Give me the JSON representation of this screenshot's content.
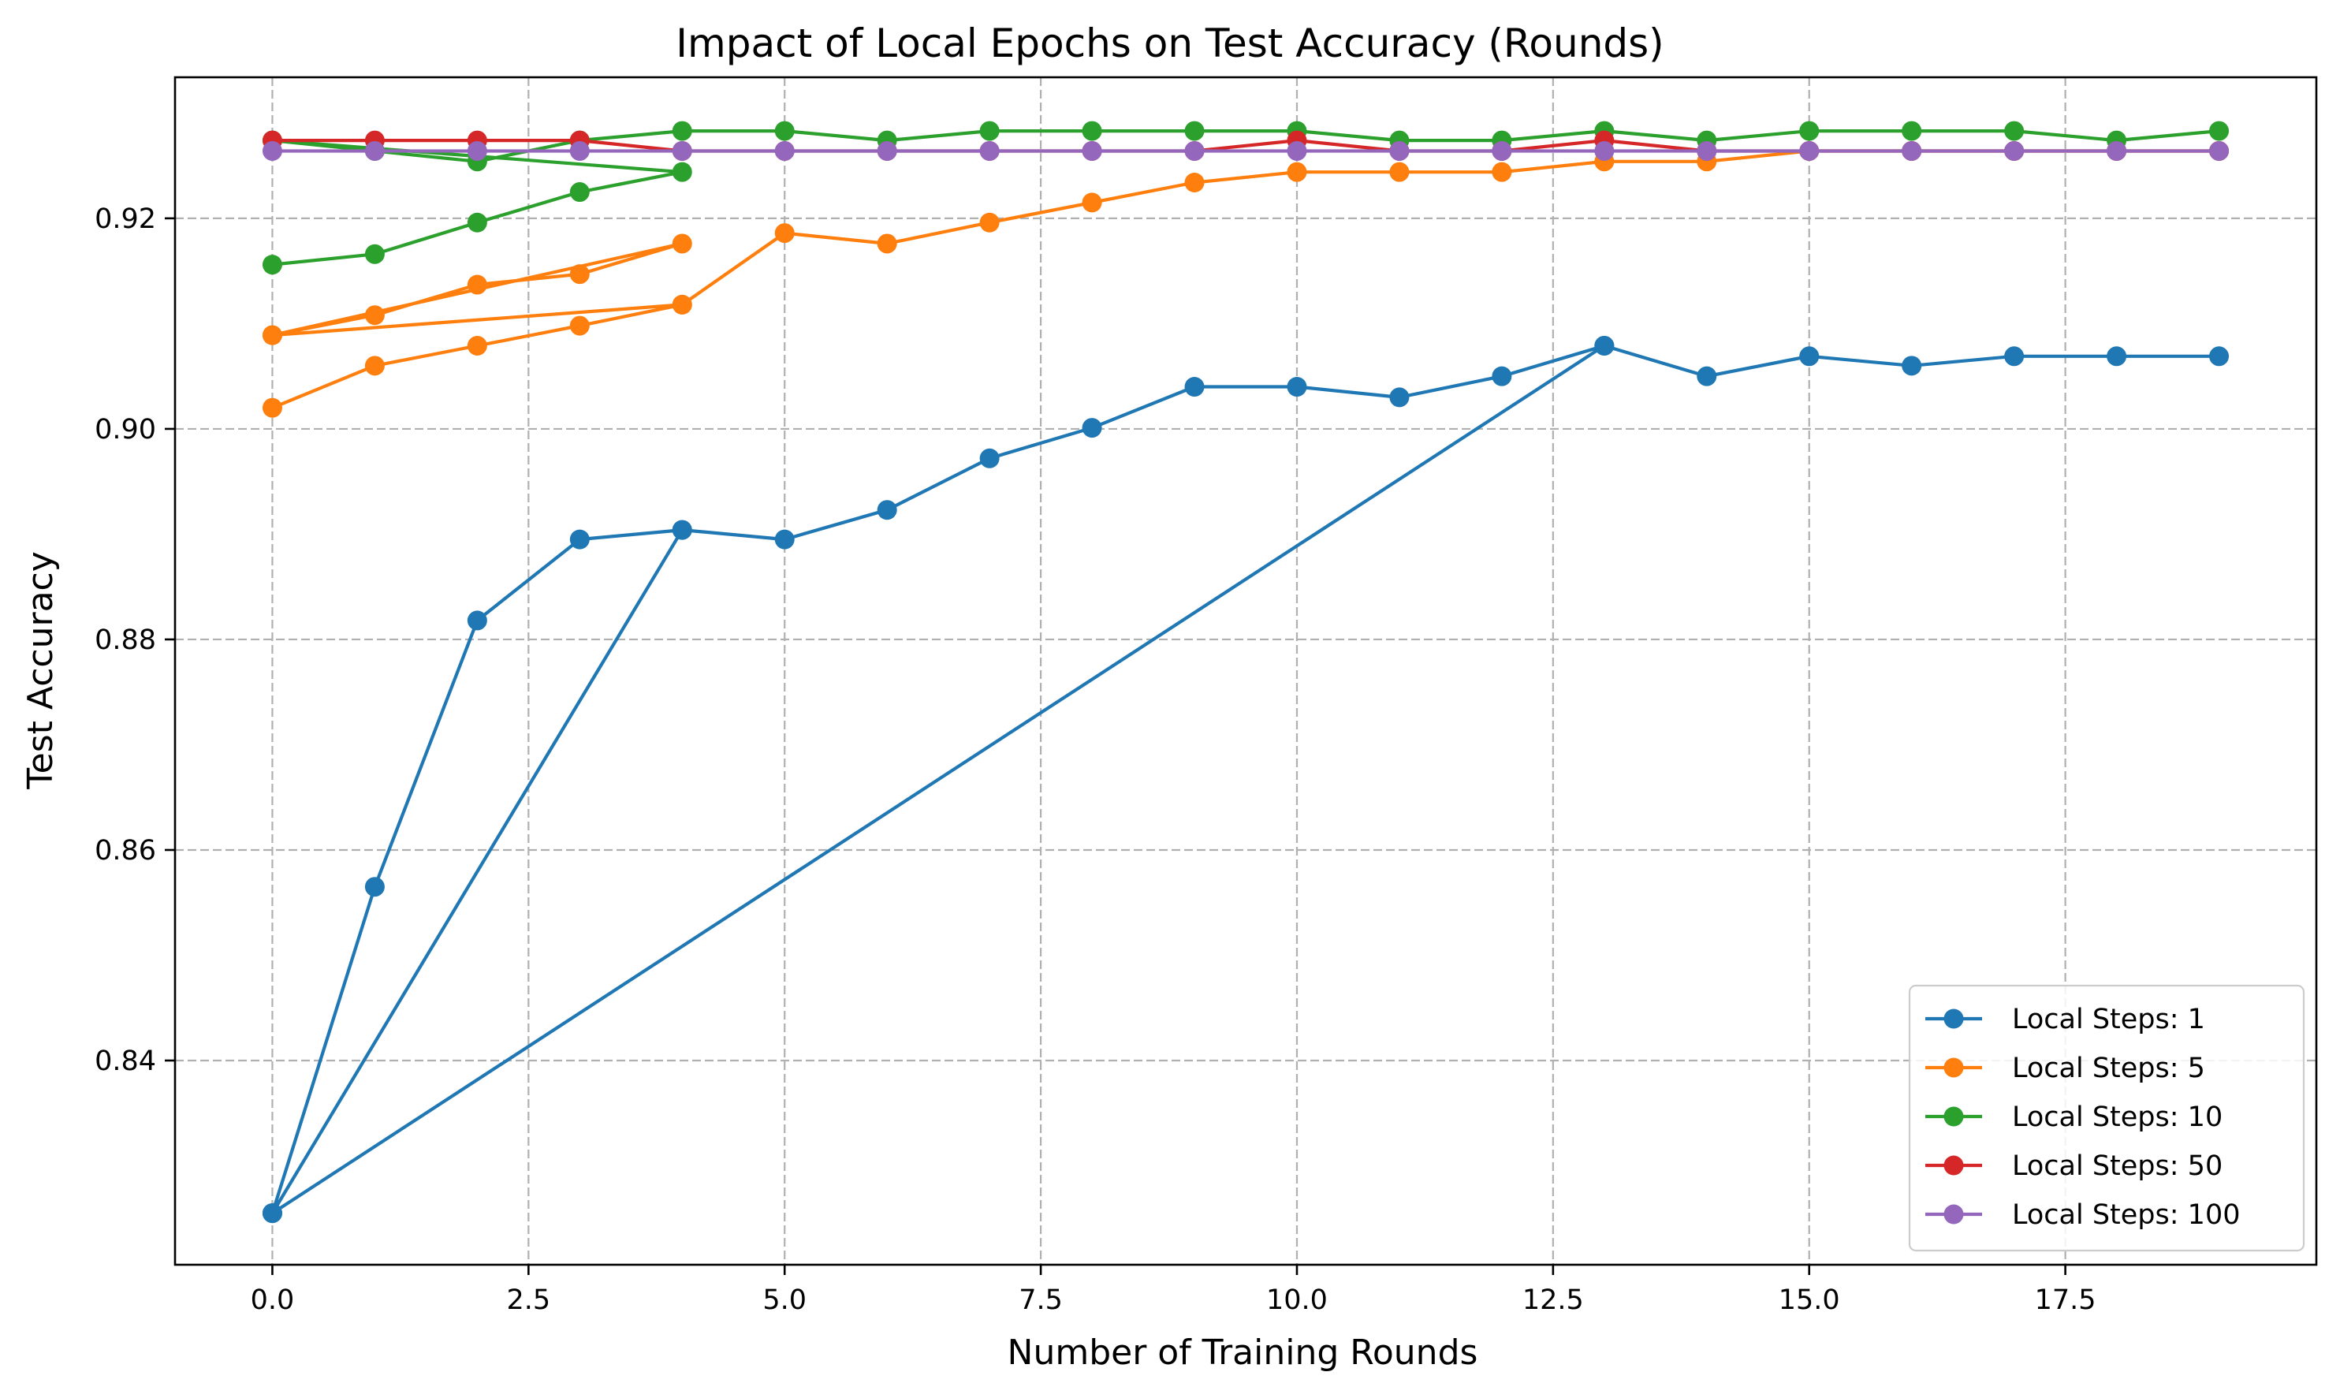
{
  "chart_data": {
    "type": "line",
    "title": "Impact of Local Epochs on Test Accuracy (Rounds)",
    "xlabel": "Number of Training Rounds",
    "ylabel": "Test Accuracy",
    "xlim": [
      -0.95,
      19.95
    ],
    "ylim": [
      0.8206,
      0.9334
    ],
    "xticks": [
      0.0,
      2.5,
      5.0,
      7.5,
      10.0,
      12.5,
      15.0,
      17.5
    ],
    "xtick_labels": [
      "0.0",
      "2.5",
      "5.0",
      "7.5",
      "10.0",
      "12.5",
      "15.0",
      "17.5"
    ],
    "yticks": [
      0.84,
      0.86,
      0.88,
      0.9,
      0.92
    ],
    "ytick_labels": [
      "0.84",
      "0.86",
      "0.88",
      "0.90",
      "0.92"
    ],
    "grid": true,
    "legend_position": "lower-right",
    "marker": "circle",
    "series": [
      {
        "name": "Local Steps: 1",
        "color": "#1f77b4",
        "x": [
          0,
          1,
          2,
          3,
          4,
          0,
          4,
          5,
          6,
          7,
          8,
          9,
          10,
          11,
          12,
          13,
          0,
          13,
          14,
          15,
          16,
          17,
          18,
          19
        ],
        "y": [
          0.8255,
          0.8565,
          0.8818,
          0.8895,
          0.8904,
          0.8255,
          0.8904,
          0.8895,
          0.8923,
          0.8972,
          0.9001,
          0.904,
          0.904,
          0.903,
          0.905,
          0.9079,
          0.8255,
          0.9079,
          0.905,
          0.9069,
          0.906,
          0.9069,
          0.9069,
          0.9069
        ]
      },
      {
        "name": "Local Steps: 5",
        "color": "#ff7f0e",
        "x": [
          0,
          1,
          2,
          3,
          4,
          0,
          1,
          2,
          3,
          4,
          0,
          4,
          5,
          6,
          7,
          8,
          9,
          10,
          11,
          12,
          13,
          14,
          15,
          16,
          17,
          18,
          19
        ],
        "y": [
          0.902,
          0.906,
          0.9079,
          0.9098,
          0.9118,
          0.9089,
          0.9108,
          0.9137,
          0.9147,
          0.9176,
          0.9089,
          0.9118,
          0.9186,
          0.9176,
          0.9196,
          0.9215,
          0.9234,
          0.9244,
          0.9244,
          0.9244,
          0.9254,
          0.9254,
          0.9264,
          0.9264,
          0.9264,
          0.9264,
          0.9264
        ]
      },
      {
        "name": "Local Steps: 10",
        "color": "#2ca02c",
        "x": [
          0,
          1,
          2,
          3,
          4,
          0,
          1,
          2,
          3,
          4,
          5,
          6,
          7,
          8,
          9,
          10,
          11,
          12,
          13,
          14,
          15,
          16,
          17,
          18,
          19
        ],
        "y": [
          0.9156,
          0.9166,
          0.9196,
          0.9225,
          0.9244,
          0.9274,
          0.9264,
          0.9254,
          0.9274,
          0.9283,
          0.9283,
          0.9274,
          0.9283,
          0.9283,
          0.9283,
          0.9283,
          0.9274,
          0.9274,
          0.9283,
          0.9274,
          0.9283,
          0.9283,
          0.9283,
          0.9274,
          0.9283
        ]
      },
      {
        "name": "Local Steps: 50",
        "color": "#d62728",
        "x": [
          0,
          1,
          2,
          3,
          4,
          5,
          6,
          7,
          8,
          9,
          10,
          11,
          12,
          13,
          14,
          15,
          16,
          17,
          18,
          19
        ],
        "y": [
          0.9274,
          0.9274,
          0.9274,
          0.9274,
          0.9264,
          0.9264,
          0.9264,
          0.9264,
          0.9264,
          0.9264,
          0.9274,
          0.9264,
          0.9264,
          0.9274,
          0.9264,
          0.9264,
          0.9264,
          0.9264,
          0.9264,
          0.9264
        ]
      },
      {
        "name": "Local Steps: 100",
        "color": "#9467bd",
        "x": [
          0,
          1,
          2,
          3,
          4,
          5,
          6,
          7,
          8,
          9,
          10,
          11,
          12,
          13,
          14,
          15,
          16,
          17,
          18,
          19
        ],
        "y": [
          0.9264,
          0.9264,
          0.9264,
          0.9264,
          0.9264,
          0.9264,
          0.9264,
          0.9264,
          0.9264,
          0.9264,
          0.9264,
          0.9264,
          0.9264,
          0.9264,
          0.9264,
          0.9264,
          0.9264,
          0.9264,
          0.9264,
          0.9264
        ]
      }
    ]
  }
}
